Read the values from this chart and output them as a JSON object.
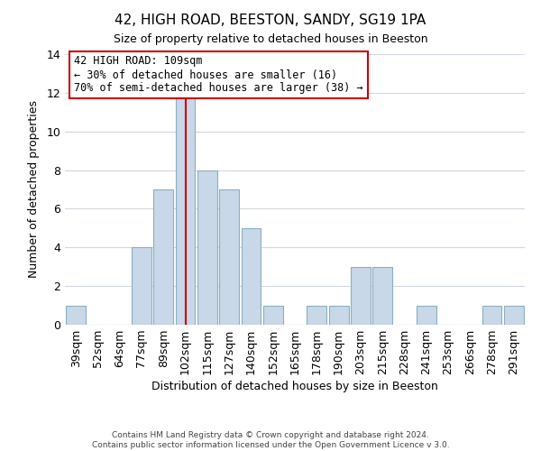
{
  "title": "42, HIGH ROAD, BEESTON, SANDY, SG19 1PA",
  "subtitle": "Size of property relative to detached houses in Beeston",
  "xlabel": "Distribution of detached houses by size in Beeston",
  "ylabel": "Number of detached properties",
  "footer_line1": "Contains HM Land Registry data © Crown copyright and database right 2024.",
  "footer_line2": "Contains public sector information licensed under the Open Government Licence v 3.0.",
  "bin_labels": [
    "39sqm",
    "52sqm",
    "64sqm",
    "77sqm",
    "89sqm",
    "102sqm",
    "115sqm",
    "127sqm",
    "140sqm",
    "152sqm",
    "165sqm",
    "178sqm",
    "190sqm",
    "203sqm",
    "215sqm",
    "228sqm",
    "241sqm",
    "253sqm",
    "266sqm",
    "278sqm",
    "291sqm"
  ],
  "bar_heights": [
    1,
    0,
    0,
    4,
    7,
    12,
    8,
    7,
    5,
    1,
    0,
    1,
    1,
    3,
    3,
    0,
    1,
    0,
    0,
    1,
    1
  ],
  "bar_color": "#c8d8e8",
  "bar_edgecolor": "#8ab0c0",
  "grid_color": "#d0d8e0",
  "vline_color": "#cc0000",
  "ylim": [
    0,
    14
  ],
  "yticks": [
    0,
    2,
    4,
    6,
    8,
    10,
    12,
    14
  ],
  "annotation_title": "42 HIGH ROAD: 109sqm",
  "annotation_line1": "← 30% of detached houses are smaller (16)",
  "annotation_line2": "70% of semi-detached houses are larger (38) →",
  "annotation_box_edgecolor": "#cc0000",
  "annotation_box_facecolor": "#ffffff",
  "bin_values": [
    39,
    52,
    64,
    77,
    89,
    102,
    115,
    127,
    140,
    152,
    165,
    178,
    190,
    203,
    215,
    228,
    241,
    253,
    266,
    278,
    291
  ],
  "vline_bar_index": 5,
  "property_sqm": 109
}
